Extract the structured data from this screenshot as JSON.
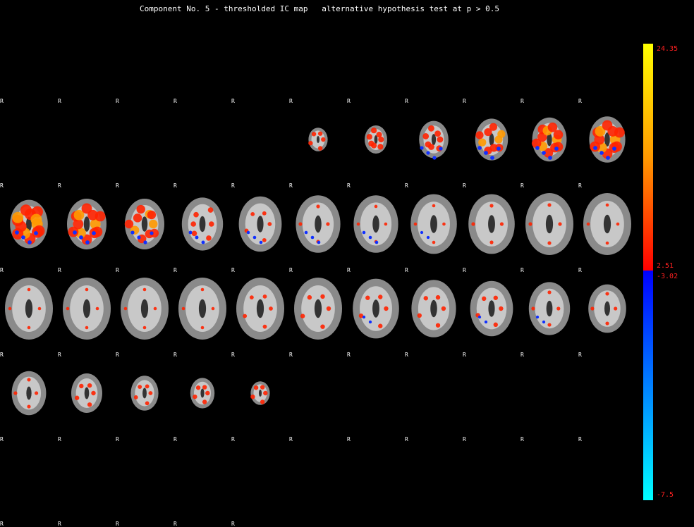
{
  "title": "Component No. 5 - thresholded IC map   alternative hypothesis test at p > 0.5",
  "orientation_label": "R",
  "colorbar": {
    "pos_max": "24.35",
    "pos_min": "2.51",
    "neg_min": "-3.02",
    "neg_max": "-7.5",
    "colors": {
      "hot_top": "#ffff00",
      "hot_mid": "#ff9900",
      "hot_bottom": "#ff0000",
      "cold_top": "#0000ff",
      "cold_bottom": "#00ffff"
    }
  },
  "slices": [
    {
      "b": 0,
      "r": 0,
      "bl": 0
    },
    {
      "b": 0,
      "r": 0,
      "bl": 0
    },
    {
      "b": 0,
      "r": 0,
      "bl": 0
    },
    {
      "b": 0,
      "r": 0,
      "bl": 0
    },
    {
      "b": 0,
      "r": 0,
      "bl": 0
    },
    {
      "b": 0.15,
      "r": 0.2,
      "bl": 0
    },
    {
      "b": 0.25,
      "r": 0.35,
      "bl": 0
    },
    {
      "b": 0.45,
      "r": 0.4,
      "bl": 0.2
    },
    {
      "b": 0.55,
      "r": 0.6,
      "bl": 0.3
    },
    {
      "b": 0.6,
      "r": 0.8,
      "bl": 0.3
    },
    {
      "b": 0.65,
      "r": 0.9,
      "bl": 0.3
    },
    {
      "b": 0.7,
      "r": 1,
      "bl": 0.3
    },
    {
      "b": 0.75,
      "r": 0.9,
      "bl": 0.3
    },
    {
      "b": 0.75,
      "r": 0.7,
      "bl": 0.2
    },
    {
      "b": 0.8,
      "r": 0.3,
      "bl": 0.15
    },
    {
      "b": 0.85,
      "r": 0.15,
      "bl": 0.1
    },
    {
      "b": 0.9,
      "r": 0.1,
      "bl": 0.1
    },
    {
      "b": 0.9,
      "r": 0.05,
      "bl": 0.1
    },
    {
      "b": 0.95,
      "r": 0.05,
      "bl": 0.05
    },
    {
      "b": 0.95,
      "r": 0.1,
      "bl": 0
    },
    {
      "b": 1,
      "r": 0.1,
      "bl": 0
    },
    {
      "b": 1,
      "r": 0.05,
      "bl": 0
    },
    {
      "b": 1,
      "r": 0.05,
      "bl": 0
    },
    {
      "b": 1,
      "r": 0.05,
      "bl": 0
    },
    {
      "b": 1,
      "r": 0.05,
      "bl": 0
    },
    {
      "b": 1,
      "r": 0.05,
      "bl": 0
    },
    {
      "b": 1,
      "r": 0.15,
      "bl": 0
    },
    {
      "b": 1,
      "r": 0.2,
      "bl": 0
    },
    {
      "b": 0.95,
      "r": 0.2,
      "bl": 0.05
    },
    {
      "b": 0.9,
      "r": 0.2,
      "bl": 0
    },
    {
      "b": 0.85,
      "r": 0.2,
      "bl": 0.05
    },
    {
      "b": 0.8,
      "r": 0.1,
      "bl": 0.05
    },
    {
      "b": 0.7,
      "r": 0.1,
      "bl": 0
    },
    {
      "b": 0.6,
      "r": 0.1,
      "bl": 0
    },
    {
      "b": 0.5,
      "r": 0.2,
      "bl": 0
    },
    {
      "b": 0.4,
      "r": 0.15,
      "bl": 0
    },
    {
      "b": 0.3,
      "r": 0.2,
      "bl": 0
    },
    {
      "b": 0.15,
      "r": 0.2,
      "bl": 0
    },
    {
      "b": 0,
      "r": 0,
      "bl": 0
    },
    {
      "b": 0,
      "r": 0,
      "bl": 0
    },
    {
      "b": 0,
      "r": 0,
      "bl": 0
    },
    {
      "b": 0,
      "r": 0,
      "bl": 0
    },
    {
      "b": 0,
      "r": 0,
      "bl": 0
    }
  ]
}
